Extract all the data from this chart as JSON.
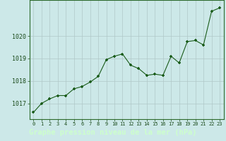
{
  "x": [
    0,
    1,
    2,
    3,
    4,
    5,
    6,
    7,
    8,
    9,
    10,
    11,
    12,
    13,
    14,
    15,
    16,
    17,
    18,
    19,
    20,
    21,
    22,
    23
  ],
  "y": [
    1016.6,
    1017.0,
    1017.2,
    1017.35,
    1017.35,
    1017.65,
    1017.75,
    1017.95,
    1018.2,
    1018.95,
    1019.1,
    1019.2,
    1018.7,
    1018.55,
    1018.25,
    1018.3,
    1018.25,
    1019.1,
    1018.8,
    1019.75,
    1019.8,
    1019.6,
    1021.1,
    1021.25
  ],
  "line_color": "#1a5c1a",
  "marker_color": "#1a5c1a",
  "bg_color": "#cce8e8",
  "plot_bg_color": "#cce8e8",
  "bottom_bar_color": "#2d6a2d",
  "bottom_text_color": "#ccffcc",
  "grid_color": "#b0c8c8",
  "ylabel_ticks": [
    1017,
    1018,
    1019,
    1020
  ],
  "xlabel_label": "Graphe pression niveau de la mer (hPa)",
  "xlim": [
    -0.5,
    23.5
  ],
  "ylim": [
    1016.3,
    1021.6
  ]
}
